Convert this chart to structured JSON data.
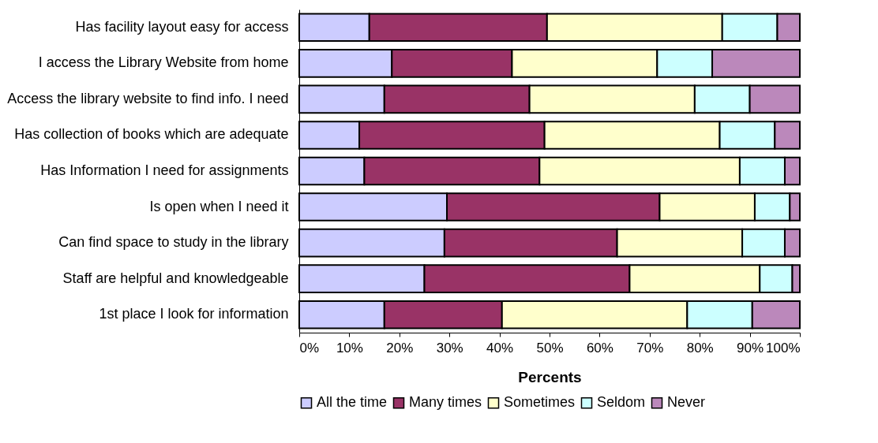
{
  "chart_data": {
    "type": "bar",
    "orientation": "horizontal",
    "stacked": true,
    "xlabel": "Percents",
    "legend": "bottom",
    "grid": false,
    "categories": [
      "Has facility layout easy for access",
      "I access the Library Website from home",
      "Access the library website to find info. I need",
      "Has collection of books which are adequate",
      "Has Information I need for assignments",
      "Is open when I need it",
      "Can find space to study in the library",
      "Staff are helpful and knowledgeable",
      "1st place I look for information"
    ],
    "xlim": [
      0,
      100
    ],
    "xticks": [
      {
        "value": 0,
        "label": "0%"
      },
      {
        "value": 10,
        "label": "10%"
      },
      {
        "value": 20,
        "label": "20%"
      },
      {
        "value": 30,
        "label": "30%"
      },
      {
        "value": 40,
        "label": "40%"
      },
      {
        "value": 50,
        "label": "50%"
      },
      {
        "value": 60,
        "label": "60%"
      },
      {
        "value": 70,
        "label": "70%"
      },
      {
        "value": 80,
        "label": "80%"
      },
      {
        "value": 90,
        "label": "90%"
      },
      {
        "value": 100,
        "label": "100%"
      }
    ],
    "series": [
      {
        "name": "All the time",
        "color": "#ccccff",
        "values": [
          14,
          18.5,
          17,
          12,
          13,
          29.5,
          29,
          25,
          17
        ]
      },
      {
        "name": "Many times",
        "color": "#993366",
        "values": [
          35.5,
          24,
          29,
          37,
          35,
          42.5,
          34.5,
          41,
          23.5
        ]
      },
      {
        "name": "Sometimes",
        "color": "#ffffcc",
        "values": [
          35,
          29,
          33,
          35,
          40,
          19,
          25,
          26,
          37
        ]
      },
      {
        "name": "Seldom",
        "color": "#ccffff",
        "values": [
          11,
          11,
          11,
          11,
          9,
          7,
          8.5,
          6.5,
          13
        ]
      },
      {
        "name": "Never",
        "color": "#bb88bb",
        "values": [
          4.5,
          17.5,
          10,
          5,
          3,
          2,
          3,
          1.5,
          9.5
        ]
      }
    ]
  }
}
